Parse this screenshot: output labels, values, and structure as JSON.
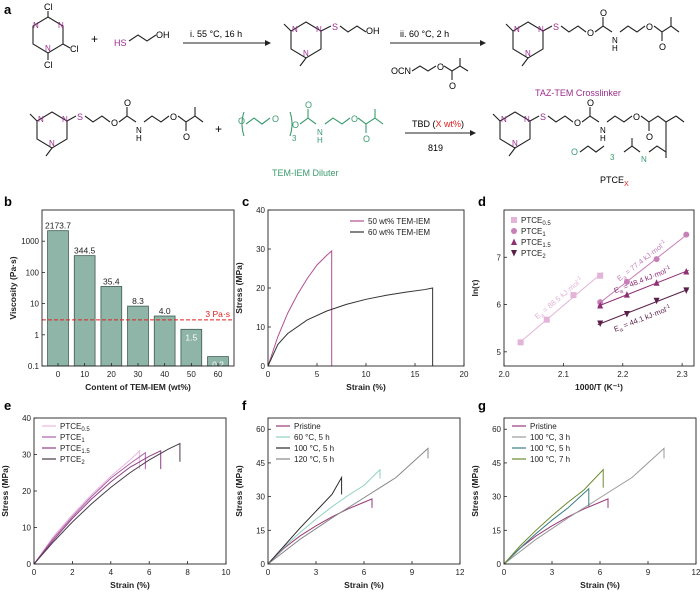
{
  "panel_labels": {
    "a": "a",
    "b": "b",
    "c": "c",
    "d": "d",
    "e": "e",
    "f": "f",
    "g": "g"
  },
  "scheme": {
    "row1": {
      "cl": "Cl",
      "n": "N",
      "s": "S",
      "oh": "OH",
      "hs": "HS",
      "plus": "+",
      "step1": "i. 55 °C, 16 h",
      "step2": "ii. 60 °C, 2 h",
      "ocn": "OCN",
      "o": "O",
      "h": "H",
      "product_name": "TAZ-TEM Crosslinker"
    },
    "row2": {
      "plus": "+",
      "reagent_prefix": "TBD (",
      "reagent_amount": "X wt%",
      "reagent_suffix": ")",
      "temp": "819",
      "diluter_name": "TEM-IEM Diluter",
      "repeat": "3",
      "product_prefix": "PTCE",
      "product_sub": "X"
    }
  },
  "colors": {
    "purple": "#9b2d8e",
    "teal": "#3a9b6e",
    "red": "#e02020",
    "bar_fill": "#8fb5a8"
  },
  "chart_data": [
    {
      "panel": "b",
      "type": "bar",
      "xlabel": "Content of TEM-IEM (wt%)",
      "ylabel": "Viscosity (Pa·s)",
      "categories": [
        "0",
        "10",
        "20",
        "30",
        "40",
        "50",
        "60"
      ],
      "values": [
        2173.7,
        344.5,
        35.4,
        8.3,
        4.0,
        1.5,
        0.2
      ],
      "value_labels": [
        "2173.7",
        "344.5",
        "35.4",
        "8.3",
        "4.0",
        "1.5",
        "0.2"
      ],
      "yscale": "log",
      "ylim": [
        0.1,
        10000
      ],
      "ytick_labels": [
        "0.1",
        "1",
        "10",
        "100",
        "1000"
      ],
      "reference_line": {
        "value": 3,
        "label": "3 Pa·s"
      }
    },
    {
      "panel": "c",
      "type": "line",
      "xlabel": "Strain (%)",
      "ylabel": "Stress (MPa)",
      "xlim": [
        0,
        20
      ],
      "ylim": [
        0,
        40
      ],
      "xticks": [
        "0",
        "5",
        "10",
        "15",
        "20"
      ],
      "yticks": [
        "0",
        "10",
        "20",
        "30",
        "40"
      ],
      "series": [
        {
          "name": "50 wt% TEM-IEM",
          "color": "#b0508f",
          "x": [
            0,
            1,
            2,
            3,
            4,
            5,
            6,
            6.5,
            6.5
          ],
          "y": [
            0,
            7.5,
            13.5,
            18.3,
            22.4,
            25.9,
            28.4,
            29.5,
            0
          ]
        },
        {
          "name": "60 wt% TEM-IEM",
          "color": "#333333",
          "x": [
            0,
            1,
            2,
            4,
            6,
            8,
            10,
            12,
            14,
            16,
            16.8,
            16.8
          ],
          "y": [
            0,
            5.5,
            8.3,
            11.8,
            14.1,
            15.8,
            17.1,
            18.1,
            18.9,
            19.6,
            20,
            0
          ]
        }
      ]
    },
    {
      "panel": "d",
      "type": "scatter",
      "xlabel": "1000/T (K⁻¹)",
      "ylabel": "ln(τ)",
      "xlim": [
        2.0,
        2.32
      ],
      "ylim": [
        4.7,
        8.0
      ],
      "xticks": [
        "2.0",
        "2.1",
        "2.2",
        "2.3"
      ],
      "yticks": [
        "5",
        "6",
        "7"
      ],
      "series": [
        {
          "name": "PTCE",
          "sub": "0.5",
          "marker": "square",
          "color": "#e3b3d8",
          "x": [
            2.028,
            2.072,
            2.117,
            2.162
          ],
          "y": [
            5.2,
            5.68,
            6.2,
            6.61
          ],
          "ea_prefix": "E",
          "ea_sub": "a",
          "ea_value": " = 88.5 kJ·mol",
          "ea_sup": "-1"
        },
        {
          "name": "PTCE",
          "sub": "1",
          "marker": "circle",
          "color": "#c77fb8",
          "x": [
            2.162,
            2.207,
            2.257,
            2.307
          ],
          "y": [
            6.05,
            6.48,
            6.96,
            7.48
          ],
          "ea_prefix": "E",
          "ea_sub": "a",
          "ea_value": " = 77.4 kJ·mol",
          "ea_sup": "-1"
        },
        {
          "name": "PTCE",
          "sub": "1.5",
          "marker": "triangle-up",
          "color": "#8e2f74",
          "x": [
            2.162,
            2.207,
            2.257,
            2.307
          ],
          "y": [
            5.98,
            6.21,
            6.46,
            6.7
          ],
          "ea_prefix": "E",
          "ea_sub": "a",
          "ea_value": " = 48.4 kJ·mol",
          "ea_sup": "-1"
        },
        {
          "name": "PTCE",
          "sub": "2",
          "marker": "triangle-down",
          "color": "#5a1f48",
          "x": [
            2.162,
            2.207,
            2.257,
            2.307
          ],
          "y": [
            5.6,
            5.8,
            6.08,
            6.3
          ],
          "ea_prefix": "E",
          "ea_sub": "a",
          "ea_value": " = 44.1 kJ·mol",
          "ea_sup": "-1"
        }
      ]
    },
    {
      "panel": "e",
      "type": "line",
      "xlabel": "Strain (%)",
      "ylabel": "Stress (MPa)",
      "xlim": [
        0,
        10
      ],
      "ylim": [
        0,
        40
      ],
      "xticks": [
        "0",
        "2",
        "4",
        "6",
        "8",
        "10"
      ],
      "yticks": [
        "0",
        "10",
        "20",
        "30",
        "40"
      ],
      "series": [
        {
          "name": "PTCE",
          "sub": "0.5",
          "color": "#e9b8e2",
          "x": [
            0,
            1,
            2,
            3,
            4,
            5,
            5.5,
            5.5
          ],
          "y": [
            0,
            7.5,
            13.5,
            19,
            24,
            28.5,
            31,
            26
          ]
        },
        {
          "name": "PTCE",
          "sub": "1",
          "color": "#b060a8",
          "x": [
            0,
            1,
            2,
            3,
            4,
            5,
            5.8,
            5.8
          ],
          "y": [
            0,
            7,
            13,
            18.5,
            23.5,
            27.5,
            30.5,
            26
          ]
        },
        {
          "name": "PTCE",
          "sub": "1.5",
          "color": "#8e3f86",
          "x": [
            0,
            1,
            2,
            3,
            4,
            5,
            6,
            6.6,
            6.6
          ],
          "y": [
            0,
            6.5,
            12.5,
            17.8,
            22.5,
            26.5,
            29.5,
            31,
            26
          ]
        },
        {
          "name": "PTCE",
          "sub": "2",
          "color": "#4a3a4a",
          "x": [
            0,
            1,
            2,
            3,
            4,
            5,
            6,
            7,
            7.6,
            7.6
          ],
          "y": [
            0,
            6,
            11.5,
            16.5,
            21,
            25,
            28.5,
            31.5,
            33,
            28
          ]
        }
      ]
    },
    {
      "panel": "f",
      "type": "line",
      "xlabel": "Strain (%)",
      "ylabel": "Stress (MPa)",
      "xlim": [
        0,
        12
      ],
      "ylim": [
        0,
        65
      ],
      "xticks": [
        "0",
        "3",
        "6",
        "9",
        "12"
      ],
      "yticks": [
        "0",
        "15",
        "30",
        "45",
        "60"
      ],
      "series": [
        {
          "name": "Pristine",
          "color": "#9b3a7a",
          "x": [
            0,
            1,
            2,
            3,
            4,
            5,
            6,
            6.5,
            6.5
          ],
          "y": [
            0,
            7,
            12.5,
            17,
            21,
            24.5,
            27.5,
            29,
            25
          ]
        },
        {
          "name": "60 °C, 5 h",
          "color": "#8fd0c0",
          "x": [
            0,
            1,
            2,
            3,
            4,
            5,
            6,
            7,
            7,
            7
          ],
          "y": [
            0,
            7.5,
            14,
            20,
            25.5,
            30.5,
            35,
            42,
            38,
            38
          ]
        },
        {
          "name": "100 °C, 5 h",
          "color": "#2a2a2a",
          "x": [
            0,
            1,
            2,
            3,
            4,
            4.6,
            4.6
          ],
          "y": [
            0,
            8,
            16,
            23.5,
            31,
            38.5,
            31
          ]
        },
        {
          "name": "120 °C, 5 h",
          "color": "#888888",
          "x": [
            0,
            2,
            4,
            6,
            8,
            10,
            10,
            10
          ],
          "y": [
            0,
            11,
            20.5,
            29.5,
            38.5,
            51.5,
            47,
            47
          ]
        }
      ]
    },
    {
      "panel": "g",
      "type": "line",
      "xlabel": "Strain (%)",
      "ylabel": "Stress (MPa)",
      "xlim": [
        0,
        12
      ],
      "ylim": [
        0,
        65
      ],
      "xticks": [
        "0",
        "3",
        "6",
        "9",
        "12"
      ],
      "yticks": [
        "0",
        "15",
        "30",
        "45",
        "60"
      ],
      "series": [
        {
          "name": "Pristine",
          "color": "#9b3a7a",
          "x": [
            0,
            1,
            2,
            3,
            4,
            5,
            6,
            6.5,
            6.5
          ],
          "y": [
            0,
            7,
            12.5,
            17,
            21,
            24.5,
            27.5,
            29,
            25
          ]
        },
        {
          "name": "100 °C, 3 h",
          "color": "#9a9a9a",
          "x": [
            0,
            2,
            4,
            6,
            8,
            10,
            10,
            10
          ],
          "y": [
            0,
            11,
            20.5,
            29.5,
            38.5,
            51.5,
            47,
            47
          ]
        },
        {
          "name": "100 °C, 5 h",
          "color": "#3b7e86",
          "x": [
            0,
            1,
            2,
            3,
            4,
            5.3,
            5.3
          ],
          "y": [
            0,
            7,
            13.5,
            19.5,
            25,
            33.5,
            25.5
          ]
        },
        {
          "name": "100 °C, 7 h",
          "color": "#6b8a2e",
          "x": [
            0,
            1,
            2,
            3,
            4,
            5,
            6.2,
            6.2
          ],
          "y": [
            0,
            8,
            15,
            21.5,
            27.5,
            33,
            42,
            34
          ]
        }
      ]
    }
  ]
}
